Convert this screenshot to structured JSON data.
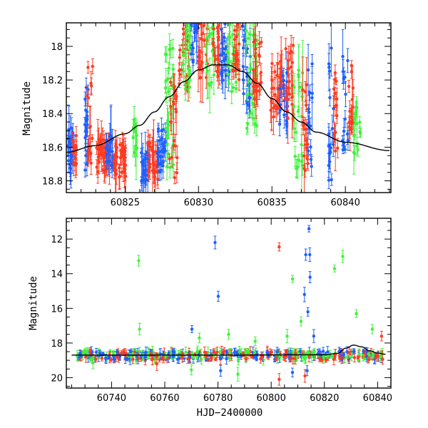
{
  "colors": {
    "blue": "#1f5fff",
    "red": "#ff3b22",
    "green": "#3ff23a",
    "model": "#000000"
  },
  "chart_data": [
    {
      "type": "scatter",
      "panel": "top",
      "ylabel": "Magnitude",
      "xlabel": "",
      "xlim": [
        60821.0,
        60843.1
      ],
      "ylim": [
        18.87,
        17.86
      ],
      "y_inverted": true,
      "x_ticks": [
        60825,
        60830,
        60835,
        60840
      ],
      "y_ticks": [
        18,
        18.2,
        18.4,
        18.6,
        18.8
      ],
      "error_bars": true,
      "model_curve": {
        "color": "model",
        "x": [
          60821,
          60823,
          60825,
          60826,
          60827,
          60828,
          60829,
          60830,
          60831,
          60832,
          60833,
          60834,
          60835,
          60836,
          60837,
          60838,
          60840,
          60843
        ],
        "y": [
          18.63,
          18.59,
          18.52,
          18.47,
          18.39,
          18.3,
          18.21,
          18.14,
          18.11,
          18.11,
          18.15,
          18.22,
          18.31,
          18.39,
          18.45,
          18.51,
          18.57,
          18.62
        ]
      },
      "clusters": [
        {
          "x": 60821.3,
          "w": 0.5,
          "ymid": 18.6,
          "spread": 0.14,
          "n": 22,
          "color": "blue"
        },
        {
          "x": 60821.6,
          "w": 0.4,
          "ymid": 18.62,
          "spread": 0.12,
          "n": 14,
          "color": "red"
        },
        {
          "x": 60822.4,
          "w": 0.3,
          "ymid": 18.52,
          "spread": 0.28,
          "n": 18,
          "color": "blue"
        },
        {
          "x": 60822.6,
          "w": 0.4,
          "ymid": 18.4,
          "spread": 0.3,
          "n": 16,
          "color": "red"
        },
        {
          "x": 60823.5,
          "w": 0.9,
          "ymid": 18.65,
          "spread": 0.1,
          "n": 45,
          "color": "red"
        },
        {
          "x": 60824.0,
          "w": 0.6,
          "ymid": 18.63,
          "spread": 0.1,
          "n": 16,
          "color": "blue"
        },
        {
          "x": 60824.6,
          "w": 0.9,
          "ymid": 18.68,
          "spread": 0.1,
          "n": 40,
          "color": "red"
        },
        {
          "x": 60825.7,
          "w": 0.3,
          "ymid": 18.55,
          "spread": 0.12,
          "n": 10,
          "color": "green"
        },
        {
          "x": 60826.4,
          "w": 0.6,
          "ymid": 18.72,
          "spread": 0.1,
          "n": 24,
          "color": "blue"
        },
        {
          "x": 60826.9,
          "w": 0.7,
          "ymid": 18.68,
          "spread": 0.12,
          "n": 30,
          "color": "red"
        },
        {
          "x": 60827.5,
          "w": 0.6,
          "ymid": 18.62,
          "spread": 0.14,
          "n": 26,
          "color": "blue"
        },
        {
          "x": 60828.0,
          "w": 0.6,
          "ymid": 18.35,
          "spread": 0.4,
          "n": 30,
          "color": "green"
        },
        {
          "x": 60828.3,
          "w": 0.6,
          "ymid": 18.5,
          "spread": 0.3,
          "n": 20,
          "color": "red"
        },
        {
          "x": 60829.0,
          "w": 0.7,
          "ymid": 18.0,
          "spread": 0.25,
          "n": 26,
          "color": "red"
        },
        {
          "x": 60829.2,
          "w": 0.6,
          "ymid": 18.05,
          "spread": 0.25,
          "n": 24,
          "color": "green"
        },
        {
          "x": 60829.7,
          "w": 0.6,
          "ymid": 17.95,
          "spread": 0.18,
          "n": 20,
          "color": "blue"
        },
        {
          "x": 60830.3,
          "w": 0.7,
          "ymid": 17.98,
          "spread": 0.22,
          "n": 26,
          "color": "red"
        },
        {
          "x": 60830.8,
          "w": 0.6,
          "ymid": 18.0,
          "spread": 0.25,
          "n": 22,
          "color": "green"
        },
        {
          "x": 60831.3,
          "w": 0.7,
          "ymid": 17.98,
          "spread": 0.22,
          "n": 26,
          "color": "red"
        },
        {
          "x": 60831.8,
          "w": 0.6,
          "ymid": 18.05,
          "spread": 0.2,
          "n": 22,
          "color": "blue"
        },
        {
          "x": 60832.3,
          "w": 0.8,
          "ymid": 18.05,
          "spread": 0.22,
          "n": 28,
          "color": "green"
        },
        {
          "x": 60832.6,
          "w": 0.6,
          "ymid": 18.0,
          "spread": 0.2,
          "n": 22,
          "color": "red"
        },
        {
          "x": 60833.3,
          "w": 0.6,
          "ymid": 18.1,
          "spread": 0.25,
          "n": 22,
          "color": "blue"
        },
        {
          "x": 60833.6,
          "w": 0.8,
          "ymid": 18.2,
          "spread": 0.3,
          "n": 26,
          "color": "green"
        },
        {
          "x": 60834.0,
          "w": 0.6,
          "ymid": 18.12,
          "spread": 0.2,
          "n": 22,
          "color": "red"
        },
        {
          "x": 60835.3,
          "w": 0.8,
          "ymid": 18.25,
          "spread": 0.18,
          "n": 30,
          "color": "red"
        },
        {
          "x": 60835.8,
          "w": 0.6,
          "ymid": 18.3,
          "spread": 0.2,
          "n": 20,
          "color": "blue"
        },
        {
          "x": 60836.2,
          "w": 0.6,
          "ymid": 18.2,
          "spread": 0.25,
          "n": 22,
          "color": "red"
        },
        {
          "x": 60836.8,
          "w": 0.6,
          "ymid": 18.4,
          "spread": 0.35,
          "n": 22,
          "color": "green"
        },
        {
          "x": 60837.3,
          "w": 0.4,
          "ymid": 18.5,
          "spread": 0.3,
          "n": 18,
          "color": "red"
        },
        {
          "x": 60837.6,
          "w": 0.3,
          "ymid": 18.45,
          "spread": 0.35,
          "n": 14,
          "color": "blue"
        },
        {
          "x": 60839.0,
          "w": 0.4,
          "ymid": 18.4,
          "spread": 0.4,
          "n": 18,
          "color": "blue"
        },
        {
          "x": 60839.3,
          "w": 0.4,
          "ymid": 18.4,
          "spread": 0.25,
          "n": 14,
          "color": "red"
        },
        {
          "x": 60840.0,
          "w": 0.4,
          "ymid": 18.35,
          "spread": 0.3,
          "n": 16,
          "color": "blue"
        },
        {
          "x": 60840.4,
          "w": 0.4,
          "ymid": 18.3,
          "spread": 0.2,
          "n": 14,
          "color": "red"
        },
        {
          "x": 60840.8,
          "w": 0.5,
          "ymid": 18.5,
          "spread": 0.15,
          "n": 16,
          "color": "green"
        }
      ]
    },
    {
      "type": "scatter",
      "panel": "bottom",
      "ylabel": "Magnitude",
      "xlabel": "HJD−2400000",
      "xlim": [
        60723,
        60845
      ],
      "ylim": [
        20.6,
        10.8
      ],
      "y_inverted": true,
      "x_ticks": [
        60740,
        60760,
        60780,
        60800,
        60820,
        60840
      ],
      "y_ticks": [
        12,
        14,
        16,
        18,
        20
      ],
      "error_bars": true,
      "model_curve": {
        "color": "model",
        "x": [
          60725,
          60780,
          60820,
          60825,
          60828,
          60831,
          60834,
          60837,
          60840,
          60843
        ],
        "y": [
          18.7,
          18.7,
          18.68,
          18.6,
          18.3,
          18.12,
          18.22,
          18.45,
          18.58,
          18.65
        ]
      },
      "band": {
        "x_start": 60727,
        "x_end": 60842,
        "y_center": 18.72,
        "y_spread": 0.25,
        "n": 420,
        "colors": [
          "red",
          "blue",
          "green"
        ]
      },
      "outliers": [
        {
          "x": 60750.2,
          "y": 13.25,
          "color": "green"
        },
        {
          "x": 60750.5,
          "y": 17.2,
          "color": "green"
        },
        {
          "x": 60770.2,
          "y": 17.2,
          "color": "blue"
        },
        {
          "x": 60773.0,
          "y": 17.7,
          "color": "green"
        },
        {
          "x": 60778.9,
          "y": 12.2,
          "color": "blue"
        },
        {
          "x": 60780.1,
          "y": 15.3,
          "color": "blue"
        },
        {
          "x": 60784.0,
          "y": 17.5,
          "color": "green"
        },
        {
          "x": 60794.0,
          "y": 17.9,
          "color": "green"
        },
        {
          "x": 60803.0,
          "y": 12.45,
          "color": "red"
        },
        {
          "x": 60806.0,
          "y": 17.6,
          "color": "green"
        },
        {
          "x": 60808.0,
          "y": 14.3,
          "color": "green"
        },
        {
          "x": 60811.2,
          "y": 16.75,
          "color": "green"
        },
        {
          "x": 60812.5,
          "y": 15.2,
          "color": "blue"
        },
        {
          "x": 60813.0,
          "y": 12.9,
          "color": "blue"
        },
        {
          "x": 60813.8,
          "y": 16.2,
          "color": "blue"
        },
        {
          "x": 60814.2,
          "y": 11.4,
          "color": "blue"
        },
        {
          "x": 60814.5,
          "y": 12.9,
          "color": "blue"
        },
        {
          "x": 60814.6,
          "y": 14.2,
          "color": "blue"
        },
        {
          "x": 60816.0,
          "y": 17.6,
          "color": "blue"
        },
        {
          "x": 60823.8,
          "y": 13.7,
          "color": "green"
        },
        {
          "x": 60826.9,
          "y": 13.0,
          "color": "green"
        },
        {
          "x": 60832.0,
          "y": 16.3,
          "color": "green"
        },
        {
          "x": 60838.0,
          "y": 17.2,
          "color": "green"
        },
        {
          "x": 60841.5,
          "y": 17.6,
          "color": "red"
        },
        {
          "x": 60770.0,
          "y": 19.55,
          "color": "green"
        },
        {
          "x": 60781.0,
          "y": 19.6,
          "color": "blue"
        },
        {
          "x": 60787.5,
          "y": 19.8,
          "color": "green"
        },
        {
          "x": 60803.0,
          "y": 20.1,
          "color": "red"
        },
        {
          "x": 60808.0,
          "y": 19.7,
          "color": "blue"
        },
        {
          "x": 60812.7,
          "y": 19.9,
          "color": "red"
        },
        {
          "x": 60813.5,
          "y": 19.6,
          "color": "blue"
        },
        {
          "x": 60757.0,
          "y": 19.2,
          "color": "red"
        },
        {
          "x": 60733.0,
          "y": 19.15,
          "color": "green"
        }
      ]
    }
  ]
}
